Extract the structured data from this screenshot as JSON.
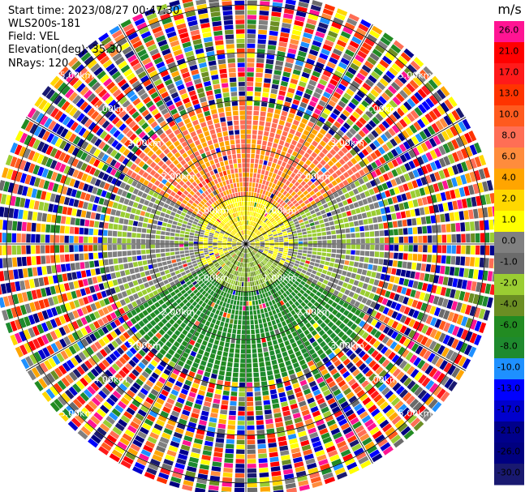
{
  "header": {
    "start_time": "Start time: 2023/08/27 00:47:30",
    "instrument": "WLS200s-181",
    "field": "Field: VEL",
    "elevation": "Elevation(deg): 35.30",
    "nrays": "NRays: 120"
  },
  "chart_data": {
    "type": "heatmap",
    "projection": "polar-ppi",
    "field": "VEL",
    "units": "m/s",
    "n_rays": 120,
    "range_rings_km": [
      "1.00km",
      "2.00km",
      "3.00km",
      "4.00km",
      "5.00km"
    ],
    "colorbar": {
      "unit_label": "m/s",
      "ticks": [
        "26.0",
        "21.0",
        "17.0",
        "13.0",
        "10.0",
        "8.0",
        "6.0",
        "4.0",
        "2.0",
        "1.0",
        "0.0",
        "-1.0",
        "-2.0",
        "-4.0",
        "-6.0",
        "-8.0",
        "-10.0",
        "-13.0",
        "-17.0",
        "-21.0",
        "-26.0",
        "-30.0"
      ],
      "colors": [
        "#ff1493",
        "#ff0000",
        "#ff1a1a",
        "#ff3300",
        "#ff5a1e",
        "#ff6e55",
        "#ff8c3c",
        "#ffa500",
        "#ffd700",
        "#ffff00",
        "#808080",
        "#6b6b6b",
        "#9acd32",
        "#6b8e23",
        "#228b22",
        "#1e8a2e",
        "#1e90ff",
        "#0000ff",
        "#0000cd",
        "#00008b",
        "#000080",
        "#191970"
      ]
    },
    "sector_pattern": [
      {
        "az_from": 300,
        "az_to": 60,
        "inner": [
          "#ff6e55",
          "#ffa500"
        ],
        "near": [
          "#ffff00",
          "#ffd700"
        ]
      },
      {
        "az_from": 60,
        "az_to": 120,
        "inner": [
          "#808080",
          "#9acd32"
        ],
        "near": [
          "#ffff00",
          "#808080"
        ]
      },
      {
        "az_from": 120,
        "az_to": 240,
        "inner": [
          "#228b22",
          "#1e8a2e"
        ],
        "near": [
          "#9acd32",
          "#6b8e23"
        ]
      },
      {
        "az_from": 240,
        "az_to": 300,
        "inner": [
          "#808080",
          "#9acd32"
        ],
        "near": [
          "#ffff00",
          "#808080"
        ]
      }
    ],
    "valid_range_km": 2.9,
    "max_range_km": 5.3
  }
}
